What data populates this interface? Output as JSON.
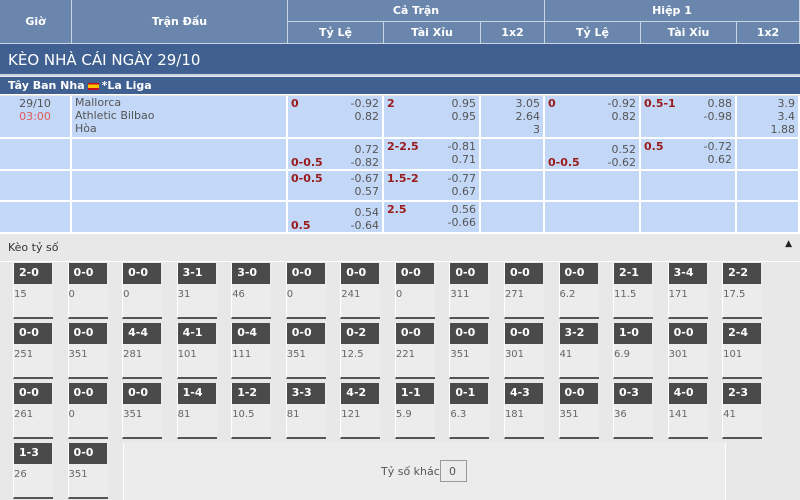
{
  "header": {
    "time": "Giờ",
    "match": "Trận Đấu",
    "full_time": "Cả Trận",
    "first_half": "Hiệp 1",
    "handicap": "Tỷ Lệ",
    "over_under": "Tài Xỉu",
    "x12": "1x2"
  },
  "title": "KÈO NHÀ CÁI NGÀY 29/10",
  "league": {
    "country": "Tây Ban Nha",
    "name": "*La Liga",
    "flag": "spain-flag"
  },
  "match": {
    "date": "29/10",
    "time": "03:00",
    "home": "Mallorca",
    "away": "Athletic Bilbao",
    "draw": "Hòa"
  },
  "rows": [
    {
      "ft_hdp": {
        "line": "0",
        "pos": "top",
        "odds": [
          "-0.92",
          "0.82"
        ]
      },
      "ft_ou": {
        "line": "2",
        "pos": "top",
        "odds": [
          "0.95",
          "0.95"
        ]
      },
      "ft_1x2": [
        "3.05",
        "2.64",
        "3"
      ],
      "h1_hdp": {
        "line": "0",
        "pos": "top",
        "odds": [
          "-0.92",
          "0.82"
        ]
      },
      "h1_ou": {
        "line": "0.5-1",
        "pos": "top",
        "odds": [
          "0.88",
          "-0.98"
        ]
      },
      "h1_1x2": [
        "3.9",
        "3.4",
        "1.88"
      ]
    },
    {
      "ft_hdp": {
        "line": "0-0.5",
        "pos": "bottom",
        "odds": [
          "0.72",
          "-0.82"
        ]
      },
      "ft_ou": {
        "line": "2-2.5",
        "pos": "top",
        "odds": [
          "-0.81",
          "0.71"
        ]
      },
      "ft_1x2": [],
      "h1_hdp": {
        "line": "0-0.5",
        "pos": "bottom",
        "odds": [
          "0.52",
          "-0.62"
        ]
      },
      "h1_ou": {
        "line": "0.5",
        "pos": "top",
        "odds": [
          "-0.72",
          "0.62"
        ]
      },
      "h1_1x2": []
    },
    {
      "ft_hdp": {
        "line": "0-0.5",
        "pos": "top",
        "odds": [
          "-0.67",
          "0.57"
        ]
      },
      "ft_ou": {
        "line": "1.5-2",
        "pos": "top",
        "odds": [
          "-0.77",
          "0.67"
        ]
      },
      "ft_1x2": [],
      "h1_hdp": null,
      "h1_ou": null,
      "h1_1x2": []
    },
    {
      "ft_hdp": {
        "line": "0.5",
        "pos": "bottom",
        "odds": [
          "0.54",
          "-0.64"
        ]
      },
      "ft_ou": {
        "line": "2.5",
        "pos": "top",
        "odds": [
          "0.56",
          "-0.66"
        ]
      },
      "ft_1x2": [],
      "h1_hdp": null,
      "h1_ou": null,
      "h1_1x2": []
    }
  ],
  "correct_score": {
    "title": "Kèo tỷ số",
    "other_label": "Tỷ số khác",
    "other_value": "0",
    "items": [
      [
        "2-0",
        "15"
      ],
      [
        "0-0",
        "0"
      ],
      [
        "0-0",
        "0"
      ],
      [
        "3-1",
        "31"
      ],
      [
        "3-0",
        "46"
      ],
      [
        "0-0",
        "0"
      ],
      [
        "0-0",
        "241"
      ],
      [
        "0-0",
        "0"
      ],
      [
        "0-0",
        "311"
      ],
      [
        "0-0",
        "271"
      ],
      [
        "0-0",
        "6.2"
      ],
      [
        "2-1",
        "11.5"
      ],
      [
        "3-4",
        "171"
      ],
      [
        "2-2",
        "17.5"
      ],
      [
        "0-0",
        "251"
      ],
      [
        "0-0",
        "351"
      ],
      [
        "4-4",
        "281"
      ],
      [
        "4-1",
        "101"
      ],
      [
        "0-4",
        "111"
      ],
      [
        "0-0",
        "351"
      ],
      [
        "0-2",
        "12.5"
      ],
      [
        "0-0",
        "221"
      ],
      [
        "0-0",
        "351"
      ],
      [
        "0-0",
        "301"
      ],
      [
        "3-2",
        "41"
      ],
      [
        "1-0",
        "6.9"
      ],
      [
        "0-0",
        "301"
      ],
      [
        "2-4",
        "101"
      ],
      [
        "0-0",
        "261"
      ],
      [
        "0-0",
        "0"
      ],
      [
        "0-0",
        "351"
      ],
      [
        "1-4",
        "81"
      ],
      [
        "1-2",
        "10.5"
      ],
      [
        "3-3",
        "81"
      ],
      [
        "4-2",
        "121"
      ],
      [
        "1-1",
        "5.9"
      ],
      [
        "0-1",
        "6.3"
      ],
      [
        "4-3",
        "181"
      ],
      [
        "0-0",
        "351"
      ],
      [
        "0-3",
        "36"
      ],
      [
        "4-0",
        "141"
      ],
      [
        "2-3",
        "41"
      ],
      [
        "1-3",
        "26"
      ],
      [
        "0-0",
        "351"
      ]
    ]
  }
}
